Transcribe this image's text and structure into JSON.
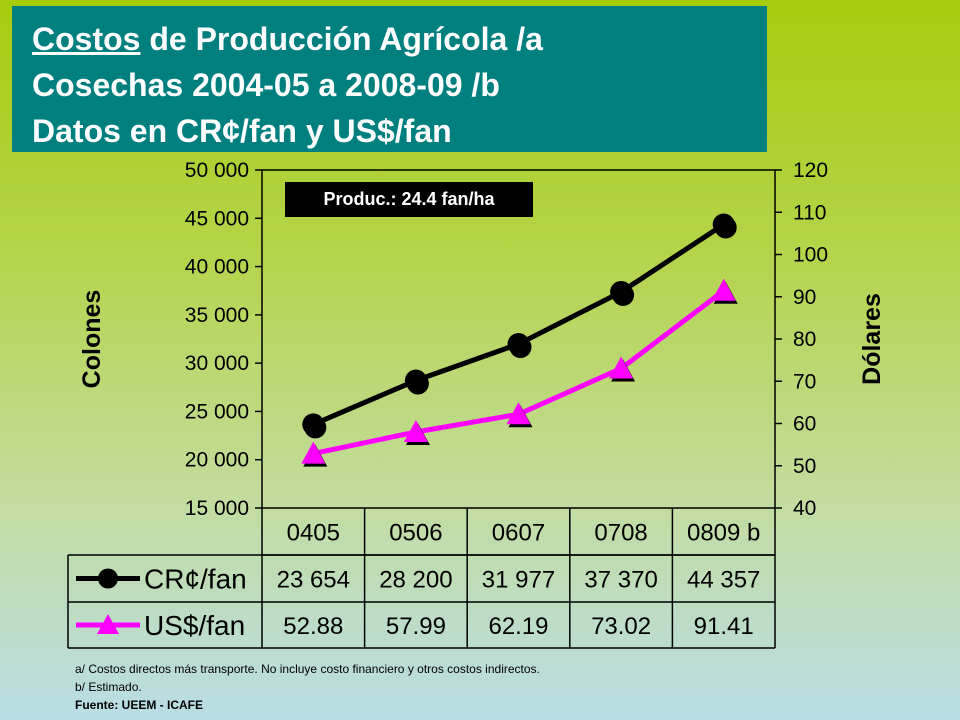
{
  "title": {
    "line1_underlined": "Costos",
    "line1_rest": " de Producción Agrícola /a",
    "line2": "Cosechas 2004-05 a 2008-09 /b",
    "line3": "Datos en CR¢/fan y US$/fan"
  },
  "badge": "Produc.: 24.4 fan/ha",
  "footnotes": {
    "a": "a/ Costos directos más transporte.  No incluye costo financiero y otros costos indirectos.",
    "b": "b/ Estimado.",
    "source": "Fuente: UEEM - ICAFE"
  },
  "chart_data": {
    "type": "line",
    "categories": [
      "0405",
      "0506",
      "0607",
      "0708",
      "0809 b"
    ],
    "y_left": {
      "label": "Colones",
      "min": 15000,
      "max": 50000,
      "step": 5000,
      "tick_labels": [
        "15 000",
        "20 000",
        "25 000",
        "30 000",
        "35 000",
        "40 000",
        "45 000",
        "50 000"
      ]
    },
    "y_right": {
      "label": "Dólares",
      "min": 40,
      "max": 120,
      "step": 10,
      "tick_labels": [
        "40",
        "50",
        "60",
        "70",
        "80",
        "90",
        "100",
        "110",
        "120"
      ]
    },
    "grid": false,
    "series": [
      {
        "name": "CR¢/fan",
        "axis": "left",
        "color": "#000000",
        "marker": "circle",
        "values": [
          23654,
          28200,
          31977,
          37370,
          44357
        ],
        "value_labels": [
          "23 654",
          "28 200",
          "31 977",
          "37 370",
          "44 357"
        ]
      },
      {
        "name": "US$/fan",
        "axis": "right",
        "color": "#ff00ff",
        "marker": "triangle",
        "values": [
          52.88,
          57.99,
          62.19,
          73.02,
          91.41
        ],
        "value_labels": [
          "52.88",
          "57.99",
          "62.19",
          "73.02",
          "91.41"
        ]
      }
    ]
  }
}
